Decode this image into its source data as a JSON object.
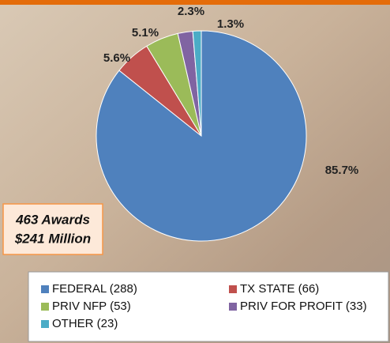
{
  "chart_data": {
    "type": "pie",
    "categories": [
      "FEDERAL (288)",
      "TX STATE (66)",
      "PRIV NFP (53)",
      "PRIV FOR PROFIT (33)",
      "OTHER (23)"
    ],
    "values": [
      85.7,
      5.6,
      5.1,
      2.3,
      1.3
    ],
    "value_labels": [
      "85.7%",
      "5.6%",
      "5.1%",
      "2.3%",
      "1.3%"
    ],
    "colors": [
      "#4f81bd",
      "#c0504d",
      "#9bbb59",
      "#8064a2",
      "#4bacc6"
    ],
    "annotations": [
      "463 Awards",
      "$241 Million"
    ]
  }
}
